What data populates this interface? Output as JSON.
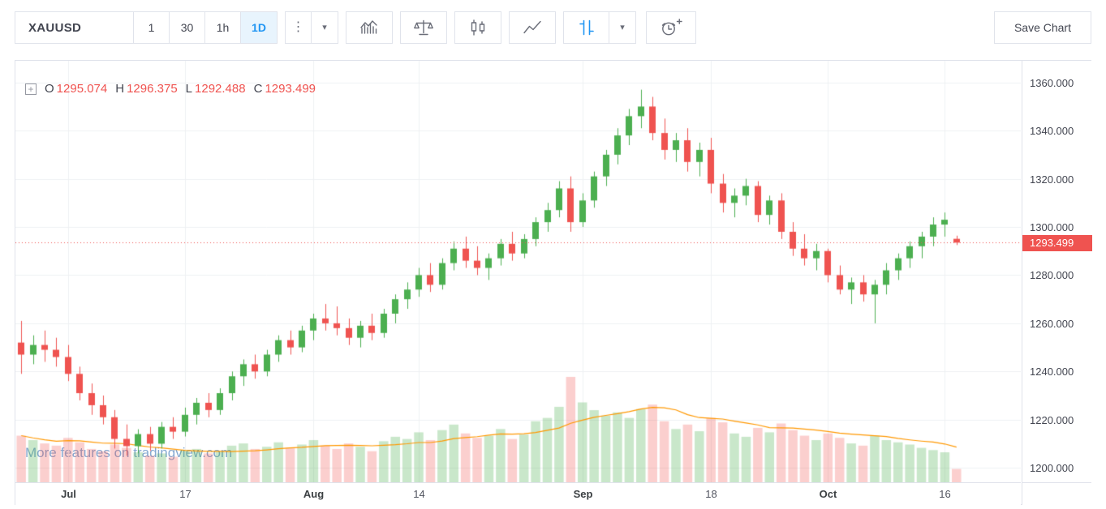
{
  "toolbar": {
    "symbol": "XAUUSD",
    "intervals": [
      {
        "label": "1",
        "active": false
      },
      {
        "label": "30",
        "active": false
      },
      {
        "label": "1h",
        "active": false
      },
      {
        "label": "1D",
        "active": true
      }
    ],
    "save_button": "Save Chart"
  },
  "icons": {
    "kebab_menu": "⋮",
    "chevron_down": "▾",
    "legend_add": "+"
  },
  "legend": {
    "open_label": "O",
    "open": "1295.074",
    "high_label": "H",
    "high": "1296.375",
    "low_label": "L",
    "low": "1292.488",
    "close_label": "C",
    "close": "1293.499"
  },
  "watermark": "More features on tradingview.com",
  "colors": {
    "up": "#4caf50",
    "down": "#ef5350",
    "vol_up": "rgba(76,175,80,0.30)",
    "vol_down": "rgba(239,83,80,0.28)",
    "volume_ma": "#ff9800",
    "grid": "#eef0f3",
    "price_line": "#ef5350",
    "tag_bg": "#ef5350",
    "accent_blue": "#2196f3"
  },
  "chart_data": {
    "type": "candlestick",
    "symbol": "XAUUSD",
    "interval": "1D",
    "title": "XAUUSD daily candlestick chart with volume",
    "last_price": 1293.499,
    "last_price_label": "1293.499",
    "right_offset_slots": 5,
    "volume_pane_height": 130,
    "volume_ma_period": 10,
    "price_axis": {
      "min": 1194,
      "max": 1369,
      "gridline_step": 20,
      "labels": [
        "1360.000",
        "1340.000",
        "1320.000",
        "1300.000",
        "1280.000",
        "1260.000",
        "1240.000",
        "1220.000",
        "1200.000"
      ]
    },
    "time_axis": {
      "ticks": [
        {
          "label": "Jul",
          "index": 4,
          "bold": true
        },
        {
          "label": "17",
          "index": 14,
          "bold": false
        },
        {
          "label": "Aug",
          "index": 25,
          "bold": true
        },
        {
          "label": "14",
          "index": 34,
          "bold": false
        },
        {
          "label": "Sep",
          "index": 48,
          "bold": true
        },
        {
          "label": "18",
          "index": 59,
          "bold": false
        },
        {
          "label": "Oct",
          "index": 69,
          "bold": true
        },
        {
          "label": "16",
          "index": 79,
          "bold": false
        }
      ]
    },
    "candles_format": [
      "open",
      "high",
      "low",
      "close",
      "volume"
    ],
    "candles": [
      [
        1252,
        1261,
        1239,
        1247,
        42
      ],
      [
        1247,
        1255,
        1243,
        1251,
        38
      ],
      [
        1251,
        1257,
        1244,
        1249,
        35
      ],
      [
        1249,
        1254,
        1242,
        1246,
        33
      ],
      [
        1246,
        1251,
        1236,
        1239,
        40
      ],
      [
        1239,
        1242,
        1228,
        1231,
        36
      ],
      [
        1231,
        1235,
        1222,
        1226,
        30
      ],
      [
        1226,
        1230,
        1218,
        1221,
        28
      ],
      [
        1221,
        1224,
        1208,
        1212,
        34
      ],
      [
        1212,
        1218,
        1205,
        1209,
        31
      ],
      [
        1209,
        1216,
        1206,
        1214,
        27
      ],
      [
        1214,
        1217,
        1207,
        1210,
        24
      ],
      [
        1210,
        1219,
        1208,
        1217,
        26
      ],
      [
        1217,
        1221,
        1212,
        1215,
        23
      ],
      [
        1215,
        1225,
        1213,
        1222,
        29
      ],
      [
        1222,
        1229,
        1218,
        1227,
        30
      ],
      [
        1227,
        1231,
        1221,
        1224,
        26
      ],
      [
        1224,
        1233,
        1222,
        1231,
        28
      ],
      [
        1231,
        1240,
        1228,
        1238,
        33
      ],
      [
        1238,
        1245,
        1234,
        1243,
        35
      ],
      [
        1243,
        1247,
        1237,
        1240,
        30
      ],
      [
        1240,
        1249,
        1238,
        1247,
        32
      ],
      [
        1247,
        1255,
        1244,
        1253,
        36
      ],
      [
        1253,
        1257,
        1247,
        1250,
        31
      ],
      [
        1250,
        1259,
        1248,
        1257,
        34
      ],
      [
        1257,
        1264,
        1253,
        1262,
        38
      ],
      [
        1262,
        1268,
        1257,
        1260,
        33
      ],
      [
        1260,
        1267,
        1255,
        1258,
        30
      ],
      [
        1258,
        1262,
        1251,
        1254,
        35
      ],
      [
        1254,
        1261,
        1250,
        1259,
        32
      ],
      [
        1259,
        1264,
        1253,
        1256,
        28
      ],
      [
        1256,
        1266,
        1254,
        1264,
        37
      ],
      [
        1264,
        1272,
        1260,
        1270,
        41
      ],
      [
        1270,
        1277,
        1266,
        1274,
        39
      ],
      [
        1274,
        1283,
        1271,
        1280,
        45
      ],
      [
        1280,
        1285,
        1273,
        1276,
        38
      ],
      [
        1276,
        1287,
        1274,
        1285,
        47
      ],
      [
        1285,
        1294,
        1282,
        1291,
        52
      ],
      [
        1291,
        1296,
        1283,
        1286,
        44
      ],
      [
        1286,
        1292,
        1280,
        1283,
        40
      ],
      [
        1283,
        1289,
        1278,
        1287,
        42
      ],
      [
        1287,
        1295,
        1284,
        1293,
        48
      ],
      [
        1293,
        1298,
        1286,
        1289,
        39
      ],
      [
        1289,
        1297,
        1287,
        1295,
        43
      ],
      [
        1295,
        1304,
        1292,
        1302,
        55
      ],
      [
        1302,
        1310,
        1298,
        1307,
        58
      ],
      [
        1307,
        1319,
        1304,
        1316,
        68
      ],
      [
        1316,
        1321,
        1298,
        1302,
        95
      ],
      [
        1302,
        1314,
        1300,
        1311,
        72
      ],
      [
        1311,
        1323,
        1308,
        1321,
        65
      ],
      [
        1321,
        1332,
        1317,
        1330,
        60
      ],
      [
        1330,
        1341,
        1326,
        1338,
        63
      ],
      [
        1338,
        1349,
        1334,
        1346,
        58
      ],
      [
        1346,
        1357,
        1341,
        1350,
        66
      ],
      [
        1350,
        1354,
        1336,
        1339,
        70
      ],
      [
        1339,
        1345,
        1328,
        1332,
        55
      ],
      [
        1332,
        1339,
        1327,
        1336,
        48
      ],
      [
        1336,
        1341,
        1323,
        1327,
        52
      ],
      [
        1327,
        1335,
        1321,
        1332,
        46
      ],
      [
        1332,
        1337,
        1314,
        1318,
        58
      ],
      [
        1318,
        1322,
        1306,
        1310,
        54
      ],
      [
        1310,
        1316,
        1304,
        1313,
        44
      ],
      [
        1313,
        1320,
        1309,
        1317,
        41
      ],
      [
        1317,
        1319,
        1302,
        1305,
        49
      ],
      [
        1305,
        1313,
        1301,
        1311,
        45
      ],
      [
        1311,
        1314,
        1295,
        1298,
        53
      ],
      [
        1298,
        1302,
        1288,
        1291,
        47
      ],
      [
        1291,
        1297,
        1284,
        1287,
        42
      ],
      [
        1287,
        1293,
        1282,
        1290,
        38
      ],
      [
        1290,
        1291,
        1277,
        1280,
        44
      ],
      [
        1280,
        1284,
        1272,
        1274,
        40
      ],
      [
        1274,
        1279,
        1268,
        1277,
        35
      ],
      [
        1277,
        1280,
        1269,
        1272,
        33
      ],
      [
        1272,
        1278,
        1260,
        1276,
        42
      ],
      [
        1276,
        1285,
        1272,
        1282,
        38
      ],
      [
        1282,
        1289,
        1278,
        1287,
        36
      ],
      [
        1287,
        1294,
        1283,
        1292,
        34
      ],
      [
        1292,
        1298,
        1287,
        1296,
        31
      ],
      [
        1296,
        1304,
        1292,
        1301,
        29
      ],
      [
        1301,
        1306,
        1296,
        1303,
        27
      ],
      [
        1295.074,
        1296.375,
        1292.488,
        1293.499,
        12
      ]
    ]
  }
}
